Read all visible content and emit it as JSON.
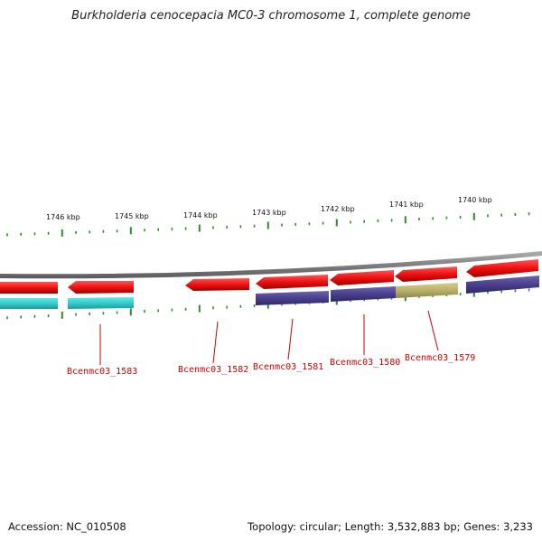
{
  "title": "Burkholderia cenocepacia MC0-3 chromosome 1, complete genome",
  "ruler": {
    "unit": "kbp",
    "ticks": [
      {
        "kbp": 1746,
        "label": "1746 kbp"
      },
      {
        "kbp": 1745,
        "label": "1745 kbp"
      },
      {
        "kbp": 1744,
        "label": "1744 kbp"
      },
      {
        "kbp": 1743,
        "label": "1743 kbp"
      },
      {
        "kbp": 1742,
        "label": "1742 kbp"
      },
      {
        "kbp": 1741,
        "label": "1741 kbp"
      },
      {
        "kbp": 1740,
        "label": "1740 kbp"
      }
    ]
  },
  "genes": [
    {
      "locus": "Bcenmc03_1583",
      "labeled": true
    },
    {
      "locus": "Bcenmc03_1582",
      "labeled": true
    },
    {
      "locus": "Bcenmc03_1581",
      "labeled": true
    },
    {
      "locus": "Bcenmc03_1580",
      "labeled": true
    },
    {
      "locus": "Bcenmc03_1579",
      "labeled": true
    }
  ],
  "colors": {
    "gene_arrow": "#ee1111",
    "cds_teal": "#33cccc",
    "cds_purple": "#4a3f8c",
    "cds_olive": "#b8b06a",
    "ruler_tick": "#2e8b2e",
    "backbone": "#8a8a8a",
    "gene_label": "#cc0000"
  },
  "footer": {
    "accession": "Accession: NC_010508",
    "summary": "Topology: circular; Length: 3,532,883 bp; Genes: 3,233"
  }
}
